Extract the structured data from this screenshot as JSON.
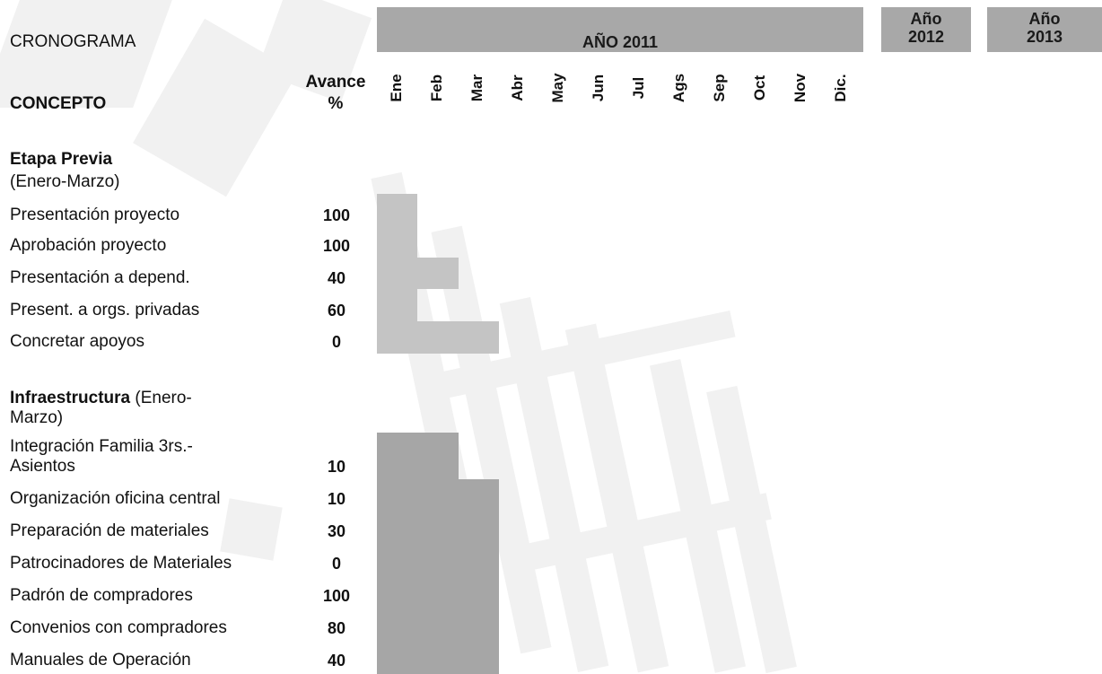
{
  "header": {
    "title": "CRONOGRAMA",
    "year_main": "AÑO 2011",
    "year_2012": "Año\n2012",
    "year_2013": "Año\n2013",
    "concept_label": "CONCEPTO",
    "avance_label": "Avance\n%"
  },
  "months": [
    "Ene",
    "Feb",
    "Mar",
    "Abr",
    "May",
    "Jun",
    "Jul",
    "Ags",
    "Sep",
    "Oct",
    "Nov",
    "Dic."
  ],
  "section1": {
    "title_bold": "Etapa Previa",
    "title_rest": " (Enero-Marzo)",
    "rows": [
      {
        "label": "Presentación proyecto",
        "avance": "100"
      },
      {
        "label": "Aprobación proyecto",
        "avance": "100"
      },
      {
        "label": "Presentación a depend.",
        "avance": "40"
      },
      {
        "label": "Present. a orgs. privadas",
        "avance": "60"
      },
      {
        "label": "Concretar apoyos",
        "avance": "0"
      }
    ]
  },
  "section2": {
    "title_bold": "Infraestructura",
    "title_rest": " (Enero-\nMarzo)",
    "rows": [
      {
        "label": "Integración Familia 3rs.-\nAsientos",
        "avance": "10"
      },
      {
        "label": "Organización oficina central",
        "avance": "10"
      },
      {
        "label": "Preparación de materiales",
        "avance": "30"
      },
      {
        "label": "Patrocinadores de Materiales",
        "avance": "0"
      },
      {
        "label": "Padrón de compradores",
        "avance": "100"
      },
      {
        "label": "Convenios con compradores",
        "avance": "80"
      },
      {
        "label": "Manuales de Operación",
        "avance": "40"
      }
    ]
  },
  "colors": {
    "header_bar": "#a8a8a8",
    "bar_light": "#c4c4c4",
    "bar_dark": "#a6a6a6",
    "watermark": "#f1f1f1"
  }
}
